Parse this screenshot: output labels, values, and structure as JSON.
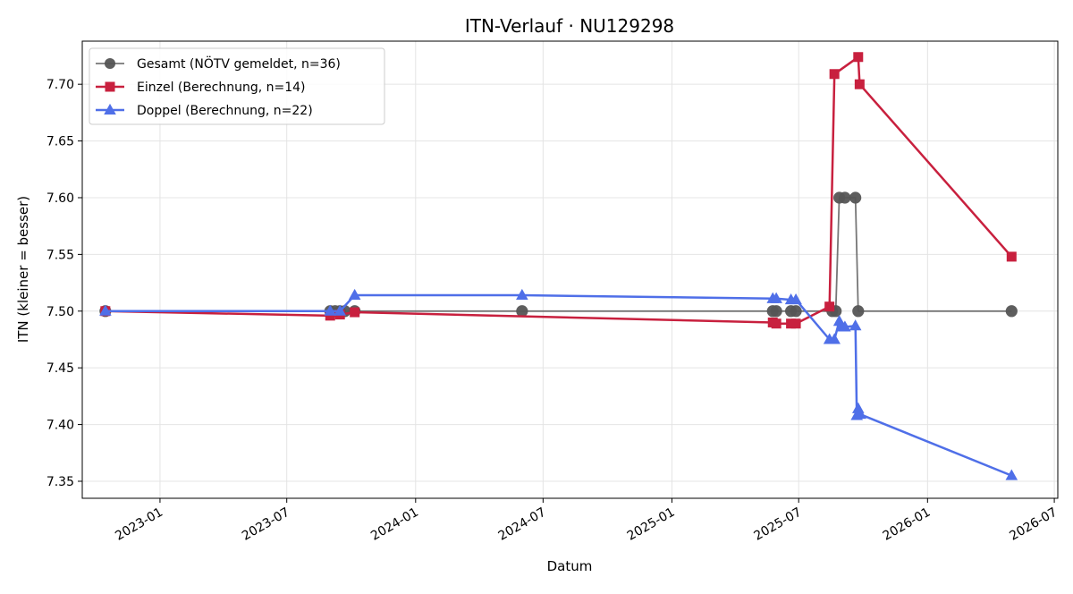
{
  "chart_data": {
    "type": "line",
    "title": "ITN-Verlauf · NU129298",
    "xlabel": "Datum",
    "ylabel": "ITN  (kleiner = besser)",
    "xlim": [
      "2022-09-12",
      "2026-07-06"
    ],
    "ylim": [
      7.335,
      7.738
    ],
    "x_ticks": [
      {
        "label": "2023-01",
        "date": "2023-01-01"
      },
      {
        "label": "2023-07",
        "date": "2023-07-01"
      },
      {
        "label": "2024-01",
        "date": "2024-01-01"
      },
      {
        "label": "2024-07",
        "date": "2024-07-01"
      },
      {
        "label": "2025-01",
        "date": "2025-01-01"
      },
      {
        "label": "2025-07",
        "date": "2025-07-01"
      },
      {
        "label": "2026-01",
        "date": "2026-01-01"
      },
      {
        "label": "2026-07",
        "date": "2026-07-01"
      }
    ],
    "y_ticks": [
      7.35,
      7.4,
      7.45,
      7.5,
      7.55,
      7.6,
      7.65,
      7.7
    ],
    "grid": true,
    "legend_position": "top-left",
    "series": [
      {
        "name": "Gesamt (NÖTV gemeldet, n=36)",
        "color": "#555555",
        "marker": "circle",
        "points": [
          {
            "x": "2022-10-15",
            "y": 7.5
          },
          {
            "x": "2023-09-01",
            "y": 7.5
          },
          {
            "x": "2023-09-08",
            "y": 7.5
          },
          {
            "x": "2023-09-15",
            "y": 7.5
          },
          {
            "x": "2023-09-22",
            "y": 7.5
          },
          {
            "x": "2023-10-06",
            "y": 7.5
          },
          {
            "x": "2024-06-01",
            "y": 7.5
          },
          {
            "x": "2025-05-25",
            "y": 7.5
          },
          {
            "x": "2025-05-30",
            "y": 7.5
          },
          {
            "x": "2025-06-20",
            "y": 7.5
          },
          {
            "x": "2025-06-27",
            "y": 7.5
          },
          {
            "x": "2025-08-18",
            "y": 7.5
          },
          {
            "x": "2025-08-23",
            "y": 7.5
          },
          {
            "x": "2025-08-28",
            "y": 7.6
          },
          {
            "x": "2025-09-05",
            "y": 7.6
          },
          {
            "x": "2025-09-20",
            "y": 7.6
          },
          {
            "x": "2025-09-24",
            "y": 7.5
          },
          {
            "x": "2026-05-01",
            "y": 7.5
          }
        ]
      },
      {
        "name": "Einzel (Berechnung, n=14)",
        "color": "#c8203e",
        "marker": "square",
        "points": [
          {
            "x": "2022-10-15",
            "y": 7.5
          },
          {
            "x": "2023-09-01",
            "y": 7.496
          },
          {
            "x": "2023-09-15",
            "y": 7.497
          },
          {
            "x": "2023-10-06",
            "y": 7.499
          },
          {
            "x": "2025-05-25",
            "y": 7.49
          },
          {
            "x": "2025-05-30",
            "y": 7.489
          },
          {
            "x": "2025-06-20",
            "y": 7.489
          },
          {
            "x": "2025-06-27",
            "y": 7.489
          },
          {
            "x": "2025-08-14",
            "y": 7.504
          },
          {
            "x": "2025-08-21",
            "y": 7.709
          },
          {
            "x": "2025-09-24",
            "y": 7.724
          },
          {
            "x": "2025-09-26",
            "y": 7.7
          },
          {
            "x": "2026-05-01",
            "y": 7.548
          }
        ]
      },
      {
        "name": "Doppel (Berechnung, n=22)",
        "color": "#4f6fe8",
        "marker": "triangle",
        "points": [
          {
            "x": "2022-10-15",
            "y": 7.5
          },
          {
            "x": "2023-09-01",
            "y": 7.5
          },
          {
            "x": "2023-09-15",
            "y": 7.5
          },
          {
            "x": "2023-10-06",
            "y": 7.514
          },
          {
            "x": "2024-06-01",
            "y": 7.514
          },
          {
            "x": "2025-05-25",
            "y": 7.511
          },
          {
            "x": "2025-05-30",
            "y": 7.511
          },
          {
            "x": "2025-06-20",
            "y": 7.51
          },
          {
            "x": "2025-06-27",
            "y": 7.51
          },
          {
            "x": "2025-08-14",
            "y": 7.475
          },
          {
            "x": "2025-08-21",
            "y": 7.475
          },
          {
            "x": "2025-08-28",
            "y": 7.491
          },
          {
            "x": "2025-09-01",
            "y": 7.486
          },
          {
            "x": "2025-09-05",
            "y": 7.486
          },
          {
            "x": "2025-09-20",
            "y": 7.487
          },
          {
            "x": "2025-09-22",
            "y": 7.408
          },
          {
            "x": "2025-09-24",
            "y": 7.414
          },
          {
            "x": "2025-09-27",
            "y": 7.409
          },
          {
            "x": "2026-05-01",
            "y": 7.355
          }
        ]
      }
    ]
  }
}
